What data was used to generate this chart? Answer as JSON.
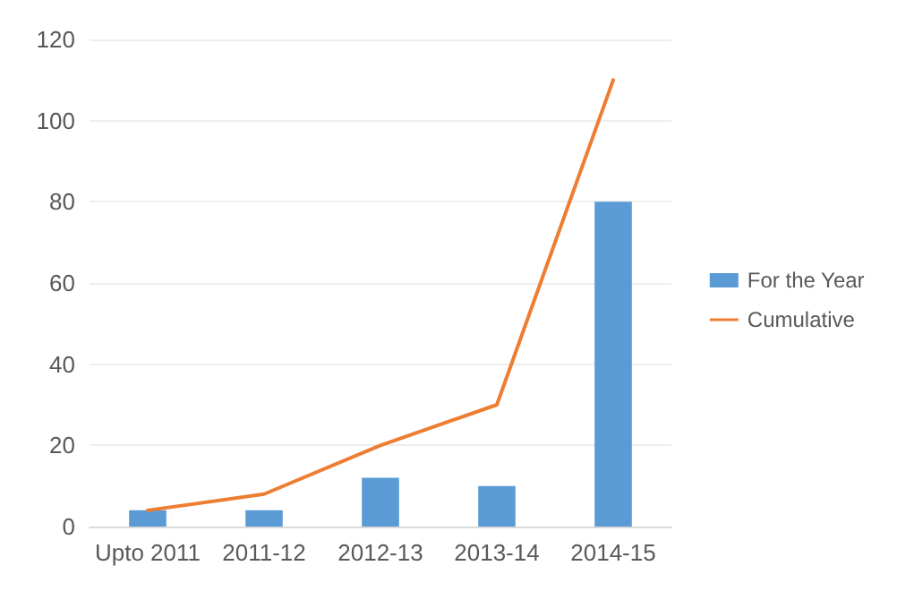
{
  "chart_data": {
    "type": "bar",
    "categories": [
      "Upto 2011",
      "2011-12",
      "2012-13",
      "2013-14",
      "2014-15"
    ],
    "series": [
      {
        "name": "For the Year",
        "color": "#5b9bd5",
        "values": [
          4,
          4,
          12,
          10,
          80
        ]
      },
      {
        "name": "Cumulative",
        "type": "line",
        "color": "#ed7d31",
        "values": [
          4,
          8,
          20,
          30,
          110
        ]
      }
    ],
    "ylim": [
      0,
      120
    ],
    "yticks": [
      0,
      20,
      40,
      60,
      80,
      100,
      120
    ],
    "grid": "y",
    "legend": "right",
    "marker": "none"
  }
}
